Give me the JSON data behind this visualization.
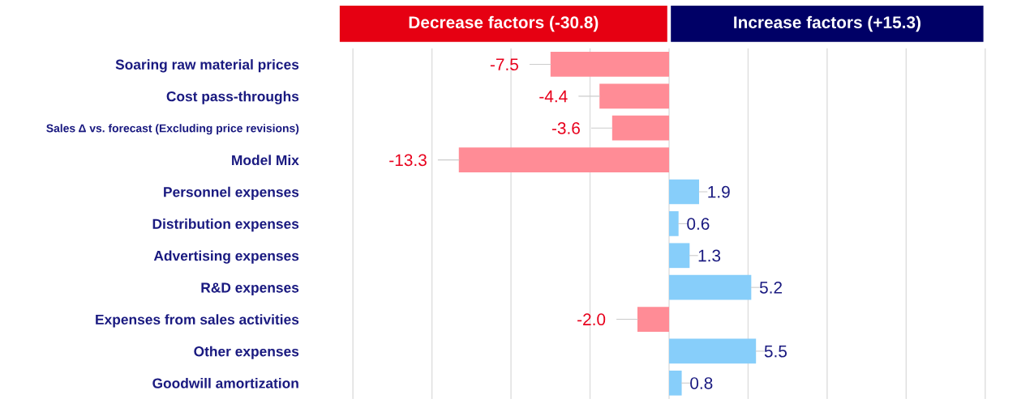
{
  "chart_data": {
    "type": "bar",
    "orientation": "horizontal",
    "categories": [
      "Soaring raw material prices",
      "Cost pass-throughs",
      "Sales Δ vs. forecast (Excluding price revisions)",
      "Model Mix",
      "Personnel expenses",
      "Distribution expenses",
      "Advertising expenses",
      "R&D expenses",
      "Expenses from sales activities",
      "Other expenses",
      "Goodwill amortization"
    ],
    "values": [
      -7.5,
      -4.4,
      -3.6,
      -13.3,
      1.9,
      0.6,
      1.3,
      5.2,
      -2.0,
      5.5,
      0.8
    ],
    "value_labels": [
      "-7.5",
      "-4.4",
      "-3.6",
      "-13.3",
      "1.9",
      "0.6",
      "1.3",
      "5.2",
      "-2.0",
      "5.5",
      "0.8"
    ],
    "colors": [
      "#ff8c96",
      "#ff8c96",
      "#ff8c96",
      "#ff8c96",
      "#87cefa",
      "#87cefa",
      "#87cefa",
      "#87cefa",
      "#ff8c96",
      "#87cefa",
      "#87cefa"
    ],
    "annotations": [
      "Decrease factors (-30.8)",
      "Increase factors (+15.3)"
    ],
    "xticks": [
      {
        "value": -20,
        "label": null
      },
      {
        "value": -15,
        "label": null
      },
      {
        "value": -10,
        "label": null
      },
      {
        "value": -5,
        "label": null
      },
      {
        "value": 0,
        "label": null
      },
      {
        "value": 5,
        "label": null
      },
      {
        "value": 10,
        "label": null
      },
      {
        "value": 15,
        "label": null
      },
      {
        "value": 20,
        "label": null
      }
    ],
    "grid": "x",
    "tick_labels": "y"
  }
}
